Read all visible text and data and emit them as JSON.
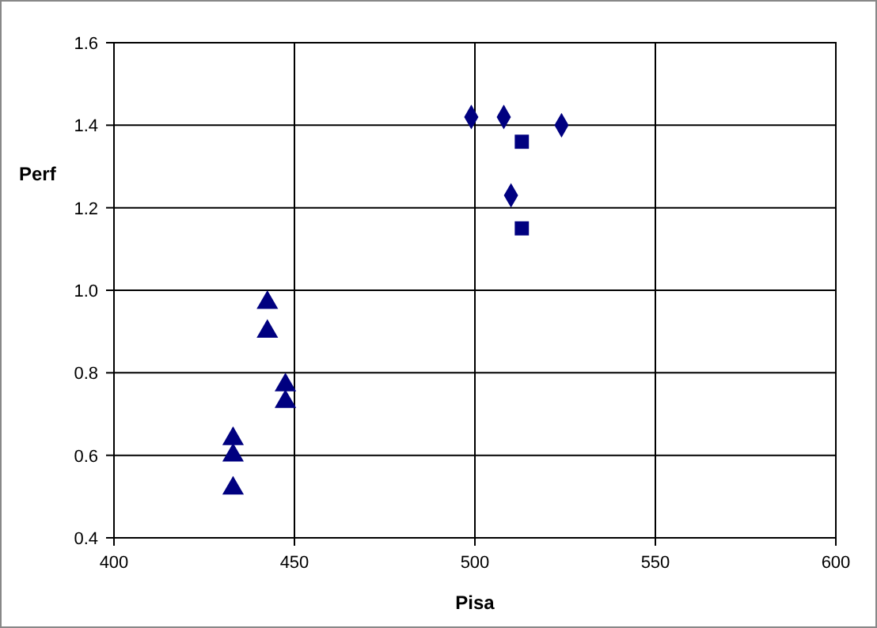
{
  "chart_data": {
    "type": "scatter",
    "xlabel": "Pisa",
    "ylabel": "Perf",
    "xlim": [
      400,
      600
    ],
    "xticks": [
      400,
      450,
      500,
      550,
      600
    ],
    "ylim": [
      0.4,
      1.6
    ],
    "yticks": [
      {
        "value": 0.4,
        "label": "0.4"
      },
      {
        "value": 0.6,
        "label": "0.6"
      },
      {
        "value": 0.8,
        "label": "0.8"
      },
      {
        "value": 1.0,
        "label": "1.0"
      },
      {
        "value": 1.2,
        "label": "1.2"
      },
      {
        "value": 1.4,
        "label": "1.4"
      },
      {
        "value": 1.6,
        "label": "1.6"
      }
    ],
    "grid": true,
    "series": [
      {
        "color": "#000080",
        "marker": "diamond",
        "x": [
          499,
          508,
          524,
          510
        ],
        "values": [
          1.42,
          1.42,
          1.4,
          1.23
        ]
      },
      {
        "color": "#000080",
        "marker": "square",
        "x": [
          513,
          513
        ],
        "values": [
          1.36,
          1.15
        ]
      },
      {
        "color": "#000080",
        "marker": "triangle",
        "x": [
          442.5,
          442.5,
          447.5,
          447.5,
          433,
          433,
          433
        ],
        "values": [
          0.97,
          0.9,
          0.77,
          0.73,
          0.64,
          0.6,
          0.52
        ]
      }
    ]
  }
}
